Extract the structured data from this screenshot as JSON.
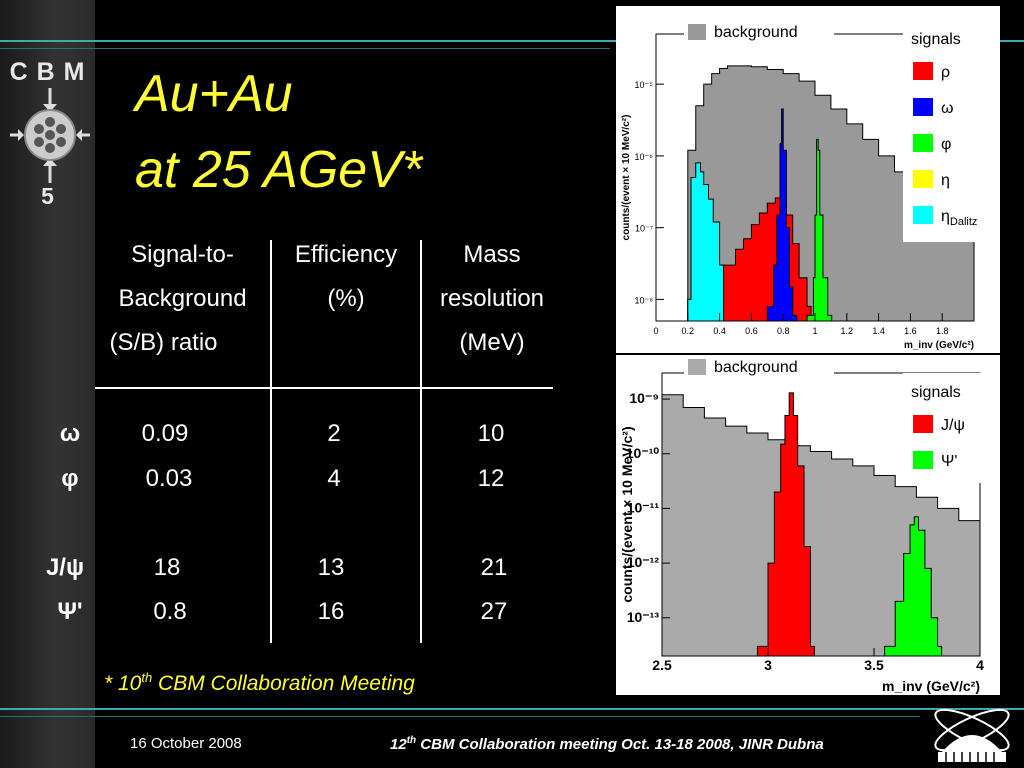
{
  "sidebar": {
    "logo_text": "C B M",
    "number": "5"
  },
  "title": {
    "line1": "Au+Au",
    "line2": "at 25 AGeV*"
  },
  "table": {
    "headers": [
      {
        "lines": [
          "Signal-to-",
          "Background",
          "(S/B) ratio"
        ]
      },
      {
        "lines": [
          "Efficiency",
          "(%)"
        ]
      },
      {
        "lines": [
          "Mass",
          "resolution",
          "(MeV)"
        ]
      }
    ],
    "rows": [
      {
        "label": "ω",
        "sb": "0.09",
        "eff": "2",
        "res": "10"
      },
      {
        "label": "φ",
        "sb": "0.03",
        "eff": "4",
        "res": "12"
      },
      {
        "label": "J/ψ",
        "sb": "18",
        "eff": "13",
        "res": "21"
      },
      {
        "label": "Ψ'",
        "sb": "0.8",
        "eff": "16",
        "res": "27"
      }
    ]
  },
  "footnote": {
    "star": "* 10",
    "sup": "th",
    "rest": " CBM Collaboration Meeting"
  },
  "footer": {
    "date": "16 October 2008",
    "meeting_num": "12",
    "meeting_sup": "th",
    "meeting_rest": " CBM  Collaboration meeting Oct. 13-18 2008, JINR Dubna"
  },
  "chart_data": [
    {
      "type": "area",
      "ylabel": "counts/(event × 10 MeV/c²)",
      "xlabel": "m_inv (GeV/c²)",
      "xlim": [
        0,
        2.0
      ],
      "ylim": [
        5e-09,
        5e-05
      ],
      "yscale": "log",
      "x_ticks": [
        "0",
        "0.2",
        "0.4",
        "0.6",
        "0.8",
        "1",
        "1.2",
        "1.4",
        "1.6",
        "1.8"
      ],
      "y_ticks": [
        "10⁻⁸",
        "10⁻⁷",
        "10⁻⁶",
        "10⁻⁵"
      ],
      "legend_background": "background",
      "legend_title": "signals",
      "legend": [
        {
          "name": "ρ",
          "color": "#ff0000"
        },
        {
          "name": "ω",
          "color": "#0000ff"
        },
        {
          "name": "φ",
          "color": "#00ff00"
        },
        {
          "name": "η",
          "color": "#ffff00"
        },
        {
          "name": "η",
          "sub": "Dalitz",
          "color": "#00ffff"
        }
      ],
      "background": {
        "color": "#999999",
        "x": [
          0.2,
          0.25,
          0.3,
          0.35,
          0.4,
          0.45,
          0.5,
          0.6,
          0.7,
          0.8,
          0.9,
          1.0,
          1.1,
          1.2,
          1.3,
          1.4,
          1.5,
          1.6,
          1.7,
          1.8,
          1.9,
          2.0
        ],
        "y": [
          1.2e-06,
          5e-06,
          1e-05,
          1.4e-05,
          1.65e-05,
          1.8e-05,
          1.8e-05,
          1.75e-05,
          1.6e-05,
          1.4e-05,
          1.1e-05,
          7e-06,
          4.5e-06,
          2.8e-06,
          1.7e-06,
          1e-06,
          6e-07,
          3.5e-07,
          2e-07,
          1.2e-07,
          7e-08,
          4e-08
        ]
      },
      "series": [
        {
          "name": "ρ",
          "color": "#ff0000",
          "x": [
            0.2,
            0.3,
            0.4,
            0.5,
            0.55,
            0.6,
            0.65,
            0.7,
            0.75,
            0.78,
            0.82,
            0.86,
            0.9,
            0.95
          ],
          "y": [
            1e-08,
            1.5e-08,
            3e-08,
            5e-08,
            7e-08,
            1.1e-07,
            1.6e-07,
            2.2e-07,
            2.6e-07,
            2.3e-07,
            1.5e-07,
            6e-08,
            2e-08,
            8e-09
          ]
        },
        {
          "name": "ω",
          "color": "#0000ff",
          "x": [
            0.7,
            0.74,
            0.76,
            0.78,
            0.79,
            0.8,
            0.82,
            0.84,
            0.86
          ],
          "y": [
            8e-09,
            3e-08,
            1.5e-07,
            1.5e-06,
            4.5e-06,
            1.2e-06,
            1e-07,
            1.5e-08,
            6e-09
          ]
        },
        {
          "name": "φ",
          "color": "#00ff00",
          "x": [
            0.95,
            0.99,
            1.0,
            1.01,
            1.02,
            1.03,
            1.05,
            1.08
          ],
          "y": [
            6e-09,
            2e-08,
            1.5e-07,
            1.7e-06,
            1.2e-06,
            1.5e-07,
            2e-08,
            6e-09
          ]
        },
        {
          "name": "η",
          "sub": "Dalitz",
          "color": "#00ffff",
          "x": [
            0.2,
            0.22,
            0.25,
            0.28,
            0.3,
            0.33,
            0.36,
            0.4
          ],
          "y": [
            1e-08,
            5e-07,
            8e-07,
            6e-07,
            4e-07,
            2.5e-07,
            1.2e-07,
            3e-08
          ]
        }
      ]
    },
    {
      "type": "area",
      "ylabel": "counts/(event × 10 MeV/c²)",
      "xlabel": "m_inv (GeV/c²)",
      "xlim": [
        2.5,
        4.0
      ],
      "ylim": [
        2e-14,
        3e-09
      ],
      "yscale": "log",
      "x_ticks": [
        "2.5",
        "3",
        "3.5",
        "4"
      ],
      "y_ticks": [
        "10⁻¹³",
        "10⁻¹²",
        "10⁻¹¹",
        "10⁻¹⁰",
        "10⁻⁹"
      ],
      "legend_background": "background",
      "legend_title": "signals",
      "legend": [
        {
          "name": "J/ψ",
          "color": "#ff0000"
        },
        {
          "name": "Ψ'",
          "color": "#00ff00"
        }
      ],
      "background": {
        "color": "#aaaaaa",
        "x": [
          2.5,
          2.6,
          2.7,
          2.8,
          2.9,
          3.0,
          3.1,
          3.2,
          3.3,
          3.4,
          3.5,
          3.6,
          3.7,
          3.8,
          3.9,
          4.0
        ],
        "y": [
          1.2e-09,
          7e-10,
          4.5e-10,
          3.2e-10,
          2.4e-10,
          1.8e-10,
          1.4e-10,
          1.1e-10,
          8e-11,
          6e-11,
          4e-11,
          2.5e-11,
          1.6e-11,
          1e-11,
          6e-12,
          4e-12
        ]
      },
      "series": [
        {
          "name": "J/ψ",
          "color": "#ff0000",
          "x": [
            2.95,
            3.0,
            3.03,
            3.06,
            3.08,
            3.1,
            3.12,
            3.14,
            3.17,
            3.2
          ],
          "y": [
            3e-14,
            1e-12,
            2e-11,
            1.5e-10,
            5e-10,
            1.3e-09,
            5e-10,
            6e-11,
            2e-12,
            3e-14
          ]
        },
        {
          "name": "Ψ'",
          "color": "#00ff00",
          "x": [
            3.55,
            3.6,
            3.64,
            3.67,
            3.69,
            3.71,
            3.74,
            3.77,
            3.8
          ],
          "y": [
            3e-14,
            2e-13,
            1.5e-12,
            5e-12,
            7e-12,
            4e-12,
            8e-13,
            1e-13,
            3e-14
          ]
        }
      ]
    }
  ]
}
